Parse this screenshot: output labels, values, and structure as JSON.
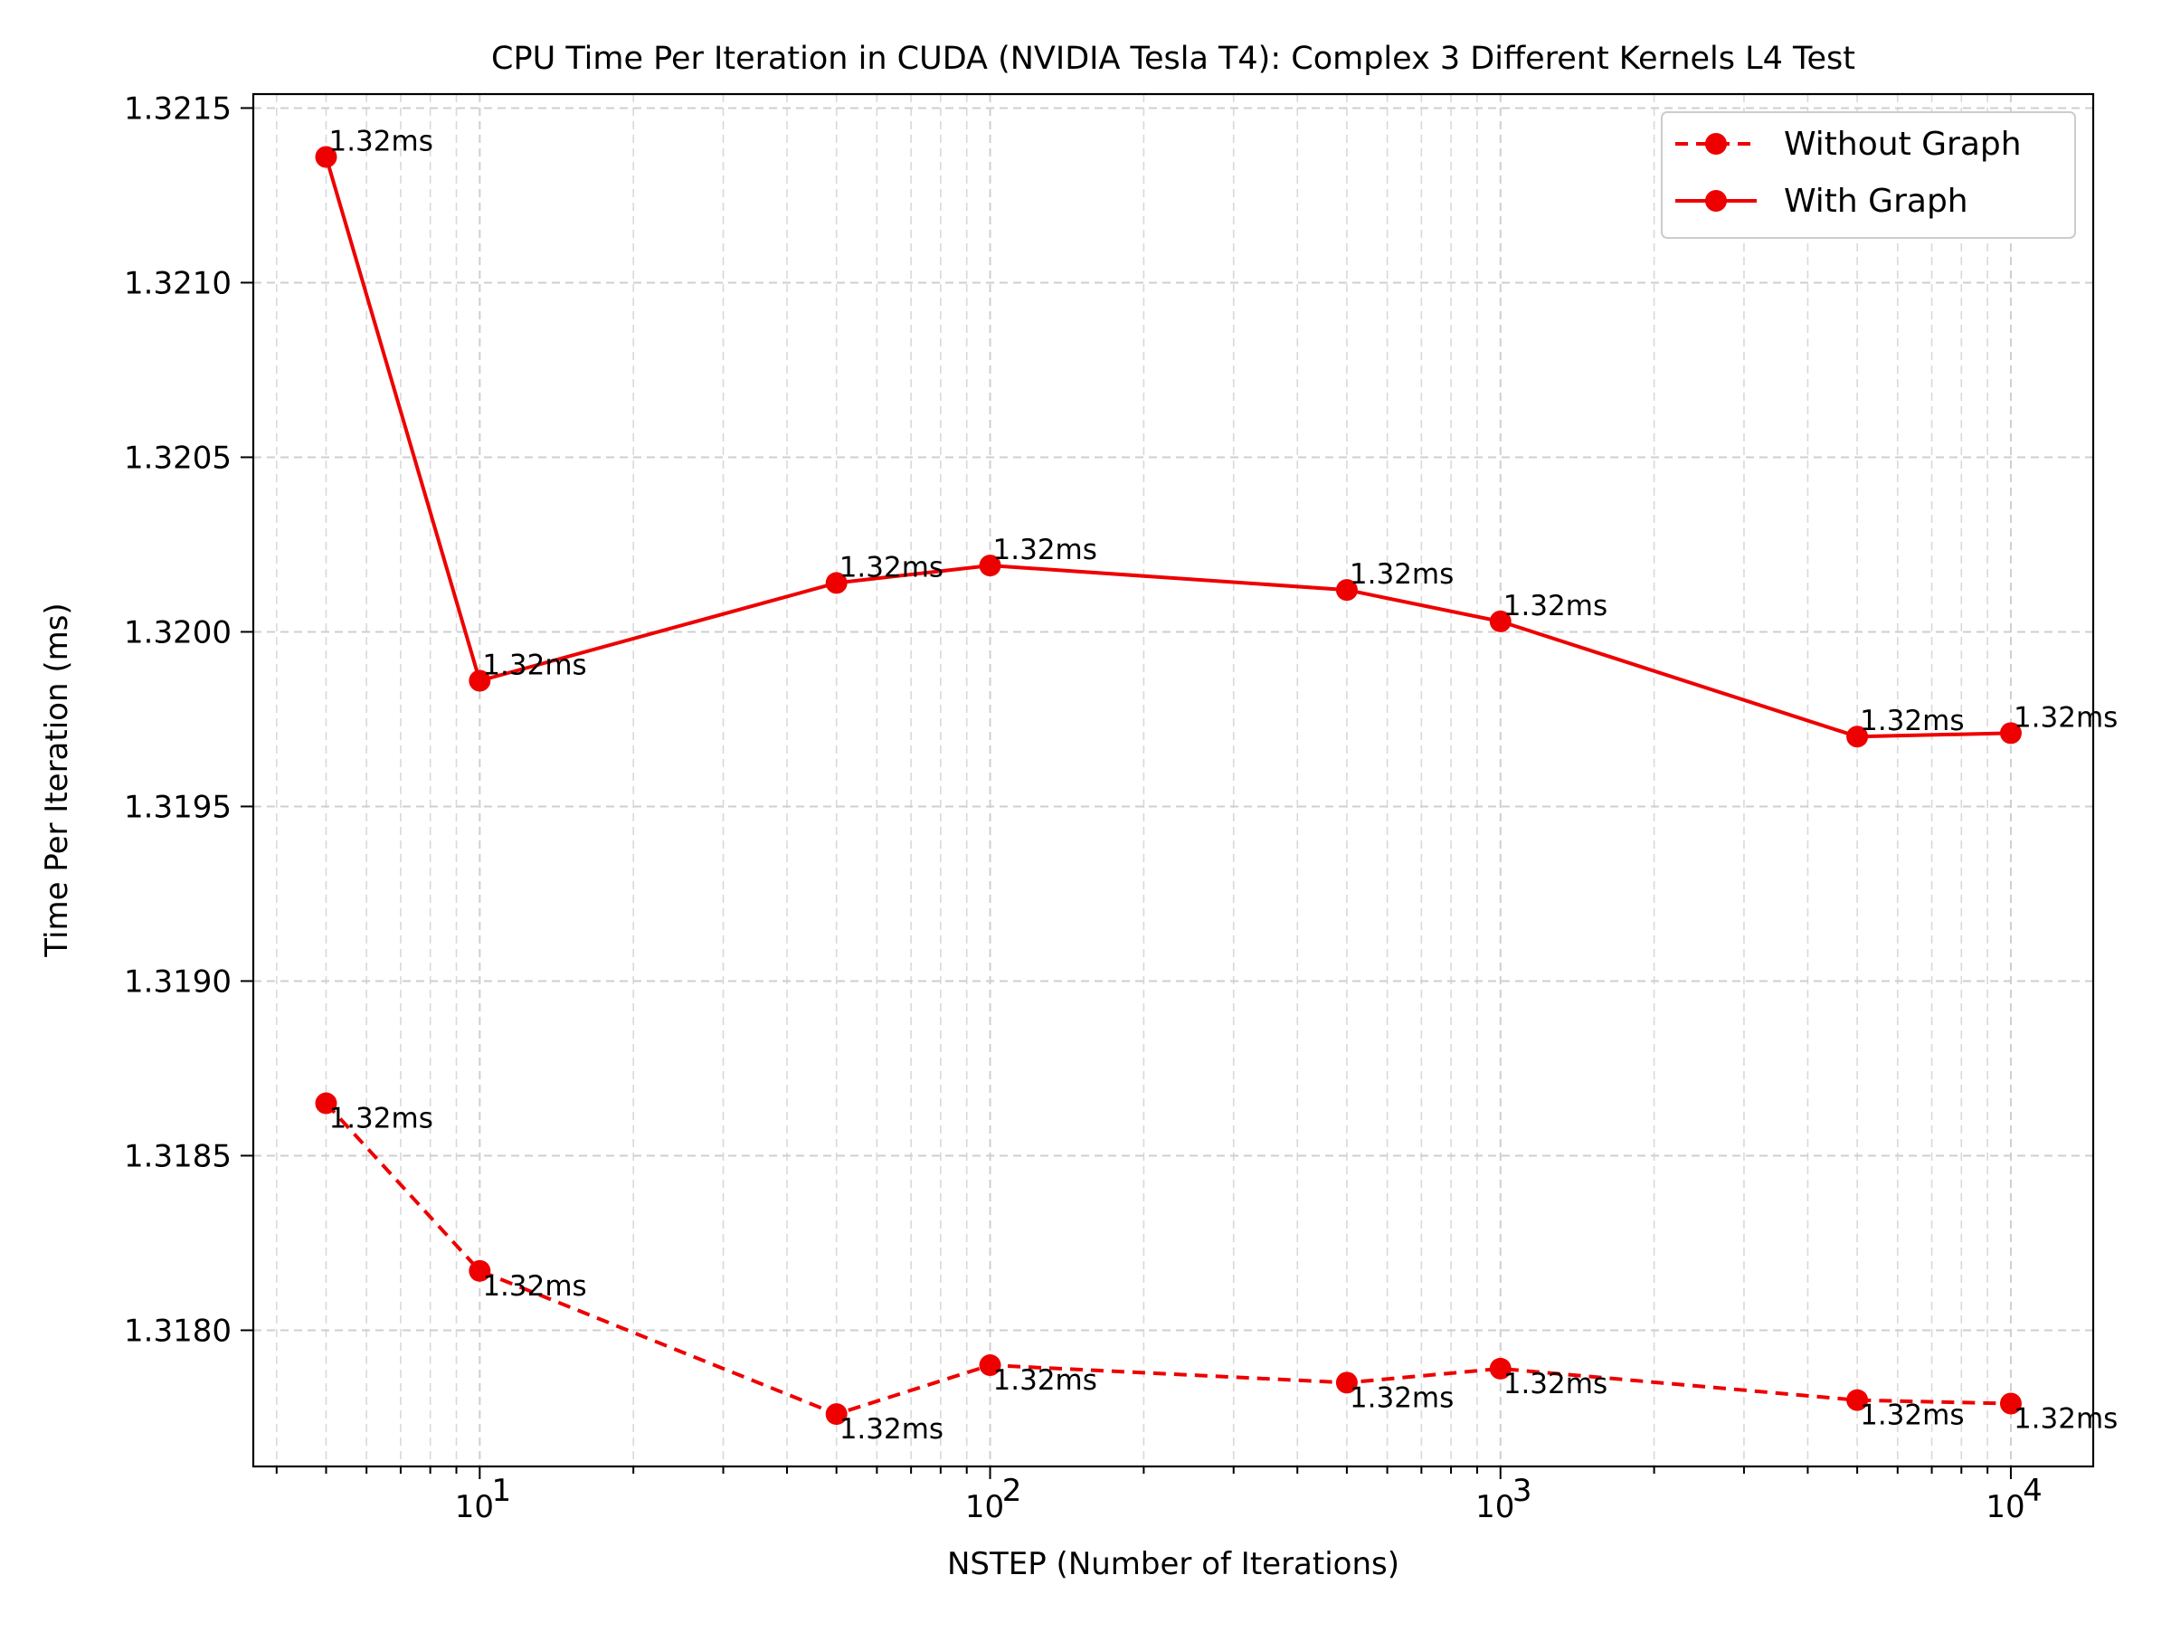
{
  "chart_data": {
    "type": "line",
    "title": "CPU Time Per Iteration in CUDA (NVIDIA Tesla T4): Complex 3 Different Kernels L4 Test",
    "xlabel": "NSTEP (Number of Iterations)",
    "ylabel": "Time Per Iteration (ms)",
    "x_scale": "log",
    "xlim": [
      3.6,
      14500
    ],
    "ylim": [
      1.31761,
      1.32154
    ],
    "x_ticks": [
      10,
      100,
      1000,
      10000
    ],
    "x_tick_labels": [
      "10",
      "10",
      "10",
      "10"
    ],
    "x_tick_exponents": [
      "1",
      "2",
      "3",
      "4"
    ],
    "y_ticks": [
      1.318,
      1.3185,
      1.319,
      1.3195,
      1.32,
      1.3205,
      1.321,
      1.3215
    ],
    "y_tick_labels": [
      "1.3180",
      "1.3185",
      "1.3190",
      "1.3195",
      "1.3200",
      "1.3205",
      "1.3210",
      "1.3215"
    ],
    "grid": true,
    "legend_position": "top-right",
    "x": [
      5,
      10,
      50,
      100,
      500,
      1000,
      5000,
      10000
    ],
    "series": [
      {
        "name": "Without Graph",
        "line_style": "dashed",
        "color": "#ee0000",
        "values": [
          1.31865,
          1.31817,
          1.31776,
          1.3179,
          1.31785,
          1.31789,
          1.3178,
          1.31779
        ],
        "labels": [
          "1.32ms",
          "1.32ms",
          "1.32ms",
          "1.32ms",
          "1.32ms",
          "1.32ms",
          "1.32ms",
          "1.32ms"
        ]
      },
      {
        "name": "With Graph",
        "line_style": "solid",
        "color": "#ee0000",
        "values": [
          1.32136,
          1.31986,
          1.32014,
          1.32019,
          1.32012,
          1.32003,
          1.3197,
          1.31971
        ],
        "labels": [
          "1.32ms",
          "1.32ms",
          "1.32ms",
          "1.32ms",
          "1.32ms",
          "1.32ms",
          "1.32ms",
          "1.32ms"
        ]
      }
    ]
  }
}
